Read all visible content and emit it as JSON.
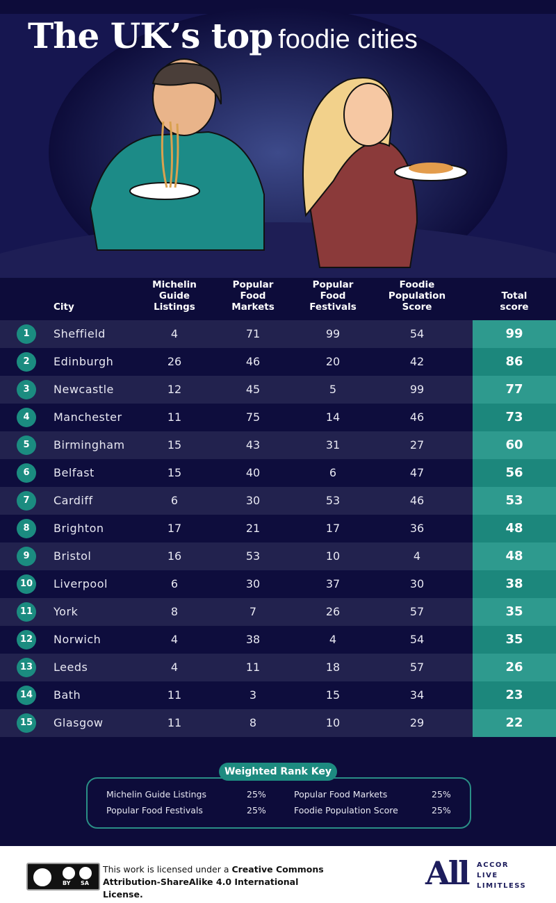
{
  "header": {
    "title_bold": "The UK’s top",
    "title_light": "foodie cities"
  },
  "table": {
    "columns": [
      "City",
      "Michelin Guide Listings",
      "Popular Food Markets",
      "Popular Food Festivals",
      "Foodie Population Score",
      "Total score"
    ],
    "rows": [
      [
        "1",
        "Sheffield",
        "4",
        "71",
        "99",
        "54",
        "99"
      ],
      [
        "2",
        "Edinburgh",
        "26",
        "46",
        "20",
        "42",
        "86"
      ],
      [
        "3",
        "Newcastle",
        "12",
        "45",
        "5",
        "99",
        "77"
      ],
      [
        "4",
        "Manchester",
        "11",
        "75",
        "14",
        "46",
        "73"
      ],
      [
        "5",
        "Birmingham",
        "15",
        "43",
        "31",
        "27",
        "60"
      ],
      [
        "6",
        "Belfast",
        "15",
        "40",
        "6",
        "47",
        "56"
      ],
      [
        "7",
        "Cardiff",
        "6",
        "30",
        "53",
        "46",
        "53"
      ],
      [
        "8",
        "Brighton",
        "17",
        "21",
        "17",
        "36",
        "48"
      ],
      [
        "9",
        "Bristol",
        "16",
        "53",
        "10",
        "4",
        "48"
      ],
      [
        "10",
        "Liverpool",
        "6",
        "30",
        "37",
        "30",
        "38"
      ],
      [
        "11",
        "York",
        "8",
        "7",
        "26",
        "57",
        "35"
      ],
      [
        "12",
        "Norwich",
        "4",
        "38",
        "4",
        "54",
        "35"
      ],
      [
        "13",
        "Leeds",
        "4",
        "11",
        "18",
        "57",
        "26"
      ],
      [
        "14",
        "Bath",
        "11",
        "3",
        "15",
        "34",
        "23"
      ],
      [
        "15",
        "Glasgow",
        "11",
        "8",
        "10",
        "29",
        "22"
      ]
    ]
  },
  "key": {
    "label": "Weighted Rank Key",
    "items": [
      {
        "name": "Michelin Guide Listings",
        "weight": "25%"
      },
      {
        "name": "Popular Food Markets",
        "weight": "25%"
      },
      {
        "name": "Popular Food Festivals",
        "weight": "25%"
      },
      {
        "name": "Foodie Population Score",
        "weight": "25%"
      }
    ]
  },
  "footer": {
    "badge": [
      "BY",
      "SA"
    ],
    "license_prefix": "This work is licensed under a",
    "license_link": "Creative Commons Attribution-ShareAlike 4.0 International License.",
    "logo": "All",
    "brand": [
      "ACCOR",
      "LIVE",
      "LIMITLESS"
    ]
  }
}
